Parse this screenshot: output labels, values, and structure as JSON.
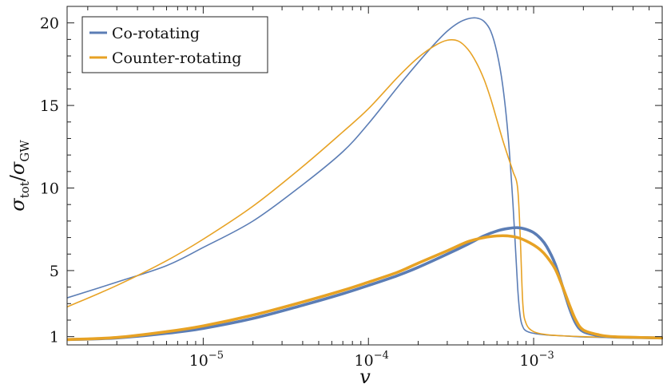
{
  "chart_data": {
    "type": "line",
    "x_scale": "log",
    "xlim": [
      1.5e-06,
      0.006
    ],
    "ylim": [
      0.5,
      21
    ],
    "grid": false,
    "legend_position": "top-left",
    "xlabel": "v",
    "ylabel": {
      "symbol": "σ",
      "num_sub": "tot",
      "slash": "/",
      "den_sub": "GW"
    },
    "x_ticks": [
      {
        "value": 1e-05,
        "base": "10",
        "exp": "−5"
      },
      {
        "value": 0.0001,
        "base": "10",
        "exp": "−4"
      },
      {
        "value": 0.001,
        "base": "10",
        "exp": "−3"
      }
    ],
    "y_ticks": [
      {
        "value": 1,
        "label": "1"
      },
      {
        "value": 5,
        "label": "5"
      },
      {
        "value": 10,
        "label": "10"
      },
      {
        "value": 15,
        "label": "15"
      },
      {
        "value": 20,
        "label": "20"
      }
    ],
    "legend": [
      {
        "name": "Co-rotating",
        "color": "#5b7db5"
      },
      {
        "name": "Counter-rotating",
        "color": "#e7a224"
      }
    ],
    "series": [
      {
        "name": "Co-rotating",
        "variant": "thin",
        "color": "#5b7db5",
        "x": [
          1.5e-06,
          3e-06,
          6e-06,
          1e-05,
          2e-05,
          4e-05,
          7e-05,
          0.0001,
          0.00015,
          0.0002,
          0.00025,
          0.0003,
          0.00035,
          0.0004,
          0.00045,
          0.0005,
          0.00055,
          0.0006,
          0.00065,
          0.0007,
          0.00075,
          0.0008,
          0.00083,
          0.00086,
          0.0009,
          0.001,
          0.0012,
          0.0015,
          0.002,
          0.003,
          0.006
        ],
        "y": [
          3.35,
          4.3,
          5.3,
          6.4,
          8.0,
          10.2,
          12.2,
          13.9,
          16.1,
          17.6,
          18.7,
          19.5,
          20.0,
          20.25,
          20.3,
          20.1,
          19.5,
          18.2,
          16.2,
          13.2,
          9.0,
          4.0,
          2.2,
          1.6,
          1.35,
          1.2,
          1.1,
          1.05,
          0.98,
          0.95,
          0.93
        ]
      },
      {
        "name": "Counter-rotating",
        "variant": "thin",
        "color": "#e7a224",
        "x": [
          1.5e-06,
          3e-06,
          6e-06,
          1e-05,
          2e-05,
          4e-05,
          7e-05,
          0.0001,
          0.00015,
          0.0002,
          0.00025,
          0.0003,
          0.00035,
          0.0004,
          0.00045,
          0.0005,
          0.00055,
          0.0006,
          0.00065,
          0.0007,
          0.00075,
          0.0008,
          0.00083,
          0.00086,
          0.0009,
          0.001,
          0.0012,
          0.0015,
          0.002,
          0.003,
          0.006
        ],
        "y": [
          2.8,
          4.1,
          5.6,
          6.9,
          8.9,
          11.3,
          13.4,
          14.8,
          16.7,
          17.9,
          18.6,
          18.95,
          18.9,
          18.4,
          17.6,
          16.6,
          15.4,
          14.1,
          12.9,
          11.9,
          11.0,
          10.0,
          7.0,
          3.0,
          1.8,
          1.3,
          1.12,
          1.05,
          1.0,
          0.95,
          0.93
        ]
      },
      {
        "name": "Co-rotating",
        "variant": "thick",
        "color": "#5b7db5",
        "x": [
          1.5e-06,
          3e-06,
          6e-06,
          1e-05,
          2e-05,
          4e-05,
          7e-05,
          0.0001,
          0.00015,
          0.0002,
          0.0003,
          0.0004,
          0.0005,
          0.0006,
          0.0007,
          0.0008,
          0.0009,
          0.001,
          0.0011,
          0.0012,
          0.00135,
          0.0015,
          0.00165,
          0.0018,
          0.002,
          0.0025,
          0.003,
          0.004,
          0.006
        ],
        "y": [
          0.82,
          0.92,
          1.2,
          1.5,
          2.1,
          2.9,
          3.6,
          4.1,
          4.7,
          5.2,
          6.0,
          6.6,
          7.1,
          7.4,
          7.55,
          7.6,
          7.5,
          7.3,
          6.95,
          6.45,
          5.4,
          4.0,
          2.7,
          1.8,
          1.3,
          1.05,
          0.98,
          0.95,
          0.92
        ]
      },
      {
        "name": "Counter-rotating",
        "variant": "thick",
        "color": "#e7a224",
        "x": [
          1.5e-06,
          3e-06,
          6e-06,
          1e-05,
          2e-05,
          4e-05,
          7e-05,
          0.0001,
          0.00015,
          0.0002,
          0.0003,
          0.0004,
          0.0005,
          0.0006,
          0.0007,
          0.0008,
          0.0009,
          0.001,
          0.0011,
          0.0012,
          0.00135,
          0.0015,
          0.00165,
          0.0018,
          0.002,
          0.0025,
          0.003,
          0.004,
          0.006
        ],
        "y": [
          0.82,
          0.95,
          1.3,
          1.65,
          2.3,
          3.1,
          3.8,
          4.3,
          4.9,
          5.45,
          6.2,
          6.75,
          7.0,
          7.1,
          7.1,
          7.0,
          6.8,
          6.55,
          6.25,
          5.85,
          5.1,
          4.0,
          2.9,
          2.0,
          1.4,
          1.1,
          1.0,
          0.96,
          0.92
        ]
      }
    ]
  }
}
